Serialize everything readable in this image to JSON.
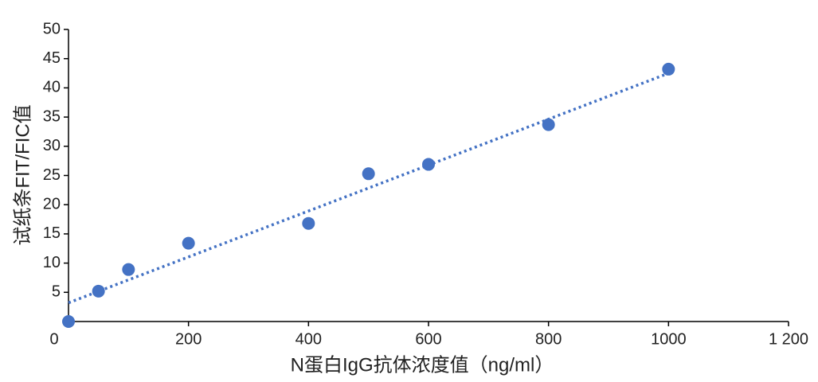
{
  "chart_data": {
    "type": "scatter",
    "xlabel": "N蛋白IgG抗体浓度值（ng/ml）",
    "ylabel": "试纸条FIT/FIC值",
    "x": [
      0,
      50,
      100,
      200,
      400,
      500,
      600,
      800,
      1000
    ],
    "series": [
      {
        "name": "FIT/FIC",
        "color": "#4472c4",
        "values": [
          0,
          5.2,
          8.9,
          13.4,
          16.8,
          25.3,
          26.9,
          33.7,
          43.2
        ]
      }
    ],
    "trendline": {
      "x": [
        0,
        1000
      ],
      "y": [
        3.2,
        42.5
      ],
      "color": "#4472c4"
    },
    "xlim": [
      0,
      1200
    ],
    "xticks": [
      0,
      200,
      400,
      600,
      800,
      1000,
      {
        "value": 1200,
        "label": "1 200"
      }
    ],
    "ylim": [
      0,
      50
    ],
    "yticks": [
      5,
      10,
      15,
      20,
      25,
      30,
      35,
      40,
      45,
      50
    ]
  }
}
